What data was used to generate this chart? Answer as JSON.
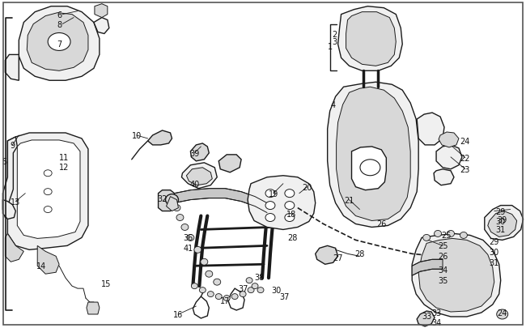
{
  "bg": "#ffffff",
  "lc": "#1a1a1a",
  "fill_light": "#f0f0f0",
  "fill_mid": "#d8d8d8",
  "fill_dark": "#b8b8b8",
  "fill_strap": "#c8c8c8"
}
